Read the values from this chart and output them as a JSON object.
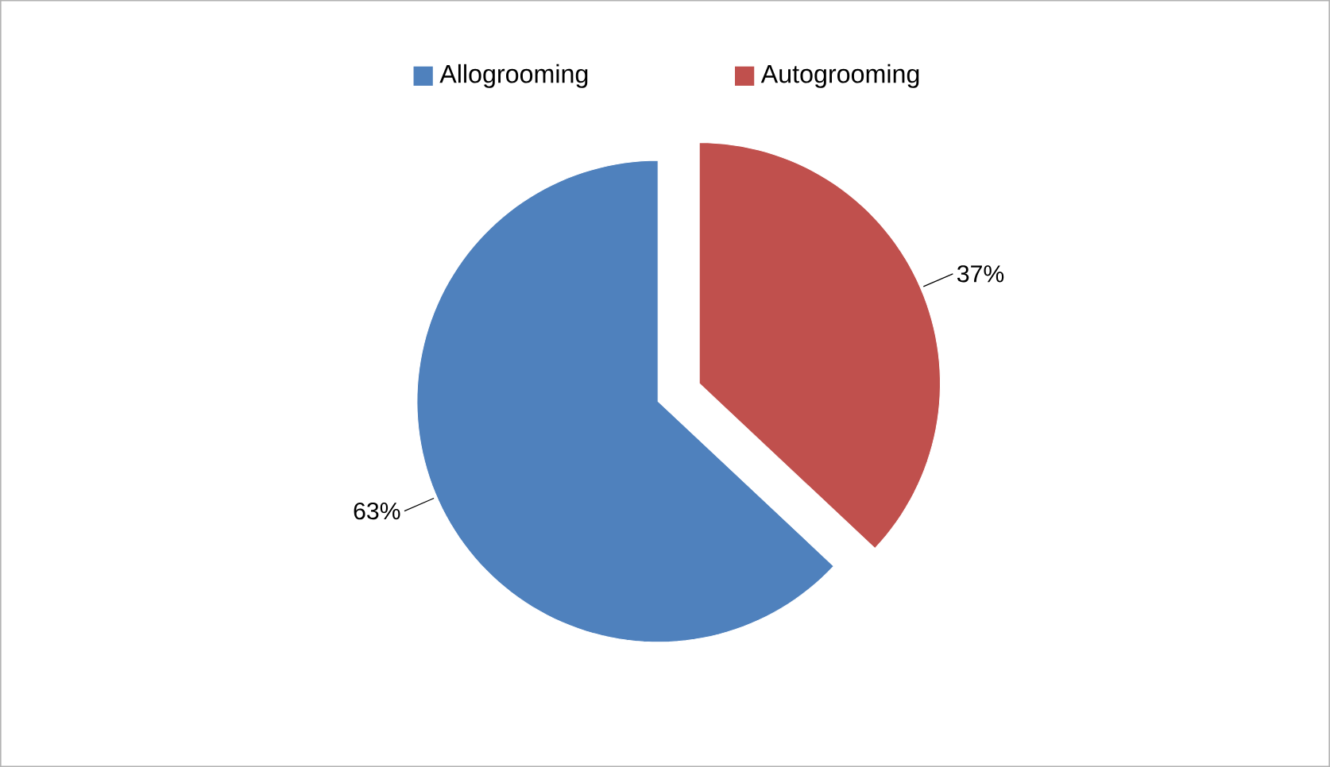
{
  "chart_data": {
    "type": "pie",
    "categories": [
      "Allogrooming",
      "Autogrooming"
    ],
    "values": [
      63,
      37
    ],
    "colors": [
      "#4f81bd",
      "#c0504d"
    ],
    "legend": "top",
    "value_labels": [
      "63%",
      "37%"
    ]
  }
}
